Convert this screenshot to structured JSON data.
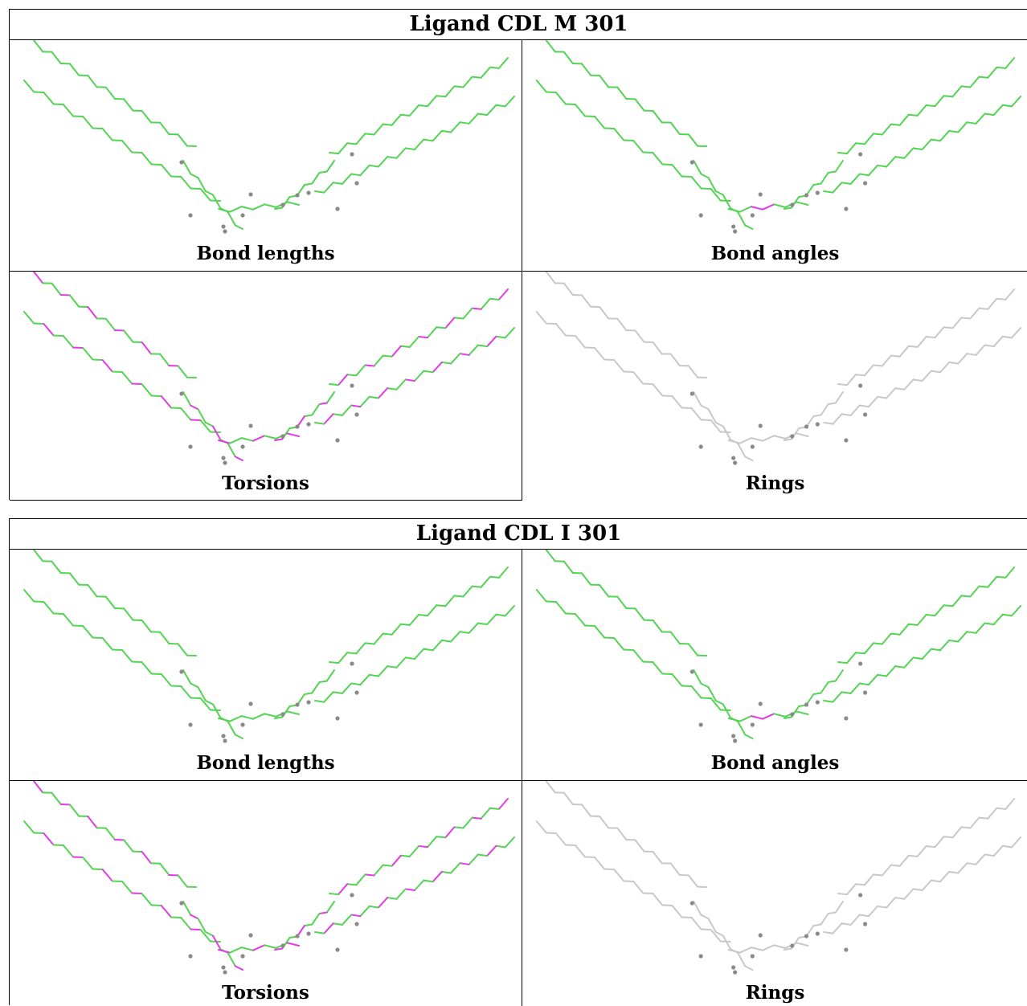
{
  "colors": {
    "ok": "#54d354",
    "outlier": "#e33be3",
    "neutral": "#c8c8c8",
    "atom": "#8a8a8a"
  },
  "blocks": [
    {
      "title": "Ligand CDL M 301",
      "panels": [
        {
          "label": "Bond lengths",
          "mode": "bond_lengths"
        },
        {
          "label": "Bond angles",
          "mode": "bond_angles"
        },
        {
          "label": "Torsions",
          "mode": "torsions"
        },
        {
          "label": "Rings",
          "mode": "rings"
        }
      ]
    },
    {
      "title": "Ligand CDL I 301",
      "panels": [
        {
          "label": "Bond lengths",
          "mode": "bond_lengths"
        },
        {
          "label": "Bond angles",
          "mode": "bond_angles"
        },
        {
          "label": "Torsions",
          "mode": "torsions"
        },
        {
          "label": "Rings",
          "mode": "rings"
        }
      ]
    }
  ]
}
